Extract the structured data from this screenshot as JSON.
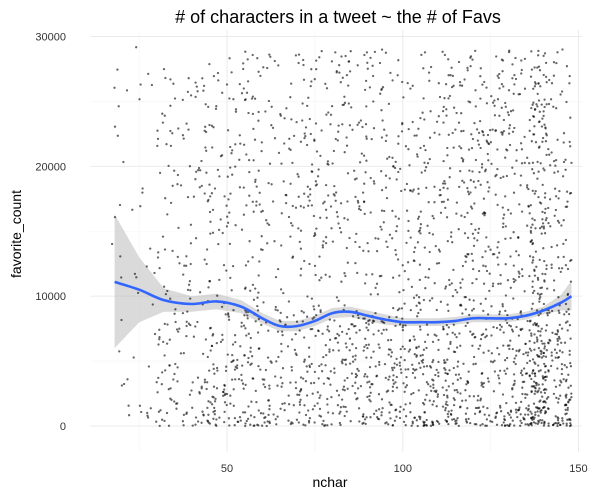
{
  "chart_data": {
    "type": "scatter",
    "title": "# of characters in a tweet ~ the # of Favs",
    "xlabel": "nchar",
    "ylabel": "favorite_count",
    "xlim": [
      11,
      151
    ],
    "ylim": [
      -2000,
      30500
    ],
    "x_ticks": [
      50,
      100,
      150
    ],
    "y_ticks": [
      0,
      10000,
      20000,
      30000
    ],
    "x_tick_labels": [
      "50",
      "100",
      "150"
    ],
    "y_tick_labels": [
      "0",
      "10000",
      "20000",
      "30000"
    ],
    "grid": true,
    "point_color": "#000000",
    "smooth_color": "#3366FF",
    "band_color": "#BBBBBB",
    "smooth": {
      "method": "loess",
      "x": [
        18,
        25,
        32,
        40,
        47,
        54,
        60,
        65,
        70,
        75,
        80,
        85,
        90,
        95,
        100,
        105,
        110,
        115,
        120,
        125,
        130,
        135,
        140,
        145,
        148
      ],
      "y": [
        11100,
        10500,
        9700,
        9400,
        9600,
        9200,
        8300,
        7700,
        7700,
        8100,
        8700,
        8800,
        8500,
        8200,
        8000,
        8000,
        8000,
        8100,
        8300,
        8300,
        8300,
        8500,
        8900,
        9500,
        10000
      ],
      "lower": [
        6000,
        8000,
        8800,
        8800,
        9000,
        8700,
        7900,
        7300,
        7300,
        7700,
        8300,
        8400,
        8100,
        7800,
        7700,
        7700,
        7700,
        7800,
        8000,
        8000,
        8000,
        8200,
        8600,
        8900,
        8900
      ],
      "upper": [
        16300,
        13000,
        10600,
        10000,
        10200,
        9700,
        8700,
        8100,
        8100,
        8500,
        9100,
        9200,
        8900,
        8600,
        8300,
        8300,
        8300,
        8400,
        8600,
        8600,
        8600,
        8800,
        9200,
        10100,
        11200
      ]
    }
  }
}
